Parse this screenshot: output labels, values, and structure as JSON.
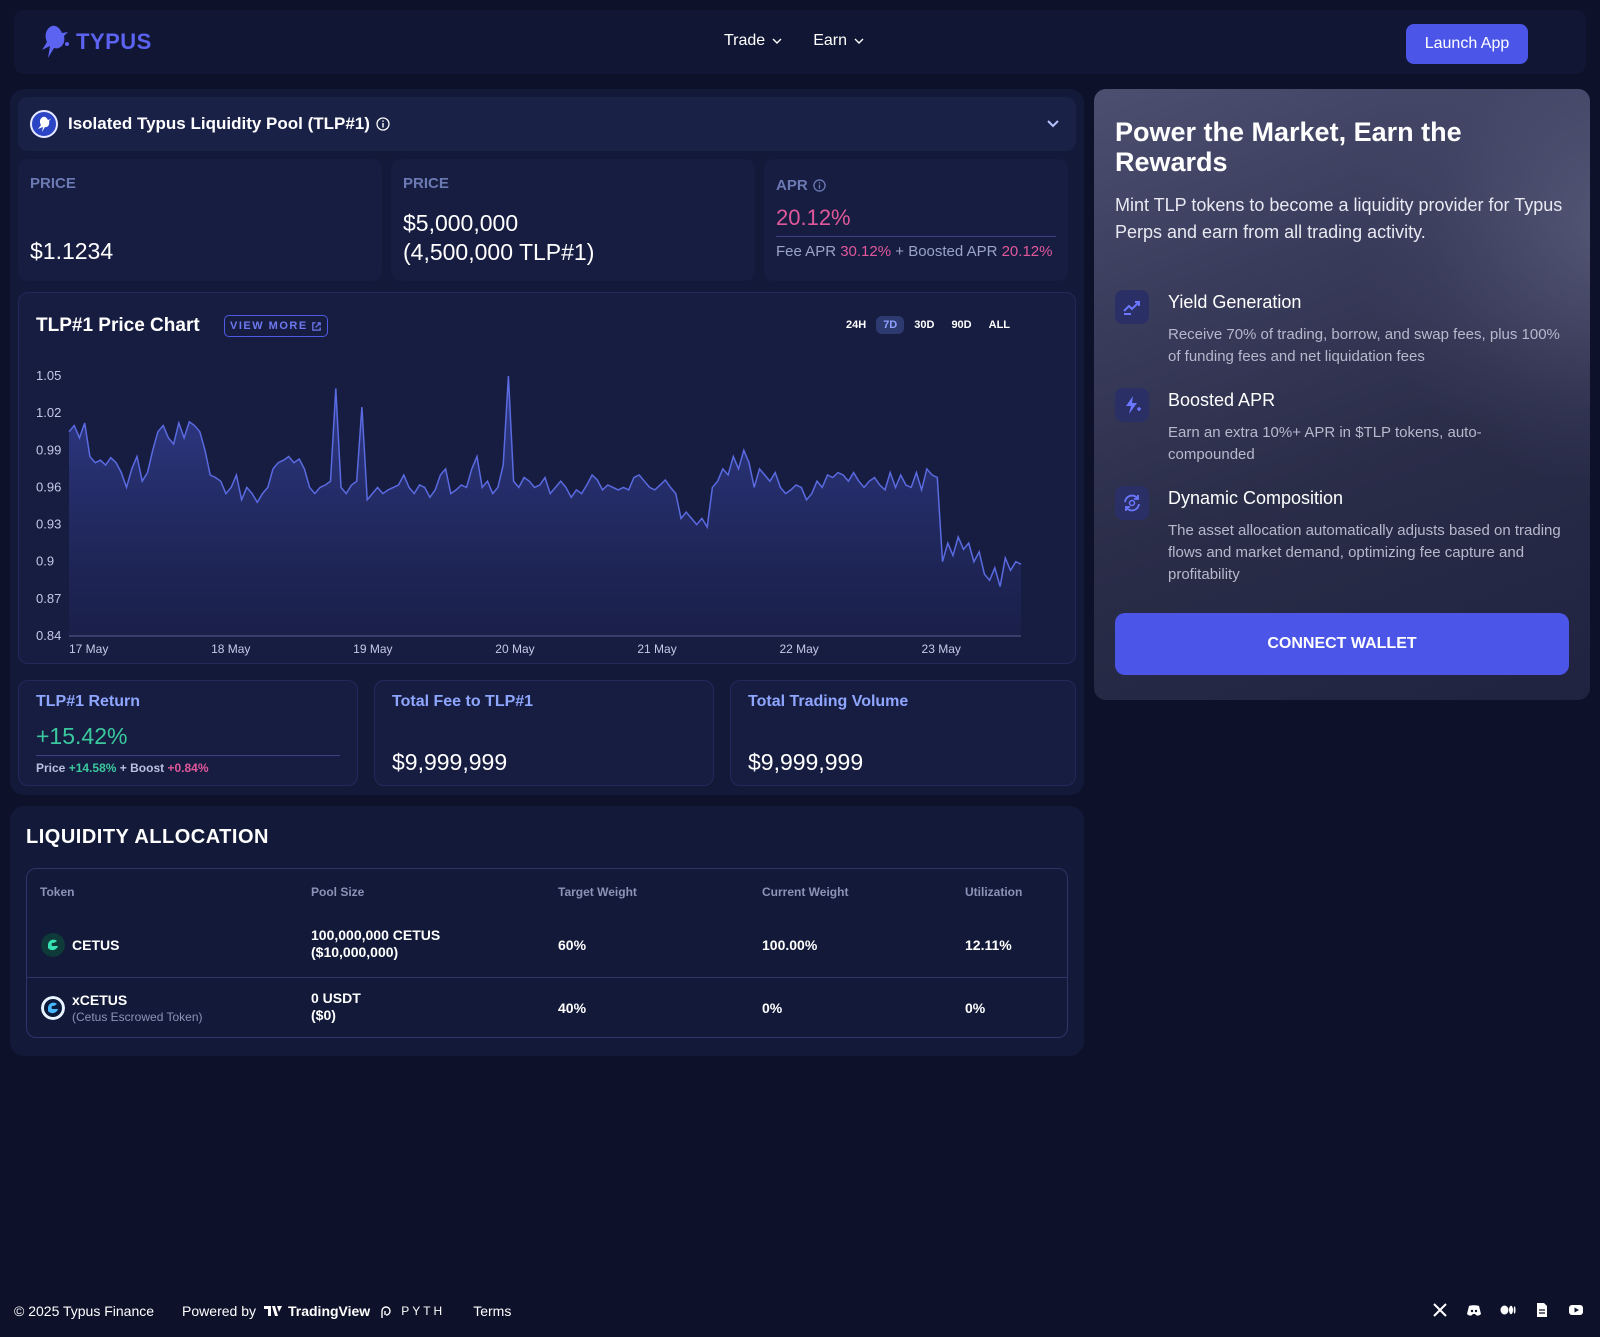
{
  "header": {
    "logo_text": "TYPUS",
    "nav": [
      {
        "label": "Trade"
      },
      {
        "label": "Earn"
      }
    ],
    "launch_label": "Launch App"
  },
  "pool": {
    "title": "Isolated Typus Liquidity Pool (TLP#1)",
    "icon_text": "TLP"
  },
  "stats": {
    "price": {
      "label": "PRICE",
      "value": "$1.1234"
    },
    "tvl": {
      "label": "PRICE",
      "value_line1": "$5,000,000",
      "value_line2": "(4,500,000 TLP#1)"
    },
    "apr": {
      "label": "APR",
      "value": "20.12%",
      "fee_label": "Fee APR",
      "fee_value": "30.12%",
      "plus": "+",
      "boost_label": "Boosted APR",
      "boost_value": "20.12%"
    }
  },
  "chart": {
    "title": "TLP#1 Price Chart",
    "view_more": "VIEW MORE",
    "ranges": [
      {
        "label": "24H",
        "active": false
      },
      {
        "label": "7D",
        "active": true
      },
      {
        "label": "30D",
        "active": false
      },
      {
        "label": "90D",
        "active": false
      },
      {
        "label": "ALL",
        "active": false
      }
    ]
  },
  "chart_data": {
    "type": "area",
    "title": "TLP#1 Price Chart",
    "xlabel": "",
    "ylabel": "",
    "ylim": [
      0.84,
      1.05
    ],
    "yticks": [
      "1.05",
      "1.02",
      "0.99",
      "0.96",
      "0.93",
      "0.9",
      "0.87",
      "0.84"
    ],
    "xticks": [
      "17 May",
      "18 May",
      "19 May",
      "20 May",
      "21 May",
      "22 May",
      "23 May"
    ],
    "x_start_day": 0,
    "x_end_day": 6.7,
    "values": [
      1.005,
      1.01,
      1.0,
      1.012,
      0.985,
      0.98,
      0.982,
      0.978,
      0.984,
      0.98,
      0.972,
      0.96,
      0.975,
      0.985,
      0.965,
      0.972,
      0.99,
      1.005,
      1.01,
      1.0,
      0.995,
      1.012,
      1.0,
      1.013,
      1.01,
      1.005,
      0.99,
      0.97,
      0.968,
      0.965,
      0.955,
      0.96,
      0.97,
      0.95,
      0.96,
      0.955,
      0.948,
      0.955,
      0.96,
      0.975,
      0.98,
      0.982,
      0.985,
      0.98,
      0.983,
      0.975,
      0.96,
      0.955,
      0.96,
      0.962,
      0.965,
      1.04,
      0.96,
      0.955,
      0.962,
      0.965,
      1.025,
      0.95,
      0.955,
      0.96,
      0.955,
      0.958,
      0.96,
      0.962,
      0.97,
      0.96,
      0.955,
      0.962,
      0.96,
      0.952,
      0.958,
      0.97,
      0.975,
      0.955,
      0.958,
      0.962,
      0.96,
      0.975,
      0.985,
      0.96,
      0.965,
      0.955,
      0.96,
      0.978,
      1.05,
      0.965,
      0.96,
      0.968,
      0.965,
      0.96,
      0.962,
      0.968,
      0.955,
      0.96,
      0.965,
      0.96,
      0.952,
      0.958,
      0.955,
      0.962,
      0.97,
      0.966,
      0.958,
      0.962,
      0.96,
      0.958,
      0.96,
      0.958,
      0.968,
      0.97,
      0.965,
      0.96,
      0.958,
      0.962,
      0.966,
      0.96,
      0.955,
      0.935,
      0.94,
      0.935,
      0.93,
      0.935,
      0.928,
      0.96,
      0.965,
      0.975,
      0.97,
      0.985,
      0.975,
      0.99,
      0.98,
      0.96,
      0.975,
      0.97,
      0.965,
      0.972,
      0.96,
      0.955,
      0.958,
      0.962,
      0.96,
      0.95,
      0.955,
      0.965,
      0.96,
      0.97,
      0.968,
      0.972,
      0.97,
      0.965,
      0.972,
      0.965,
      0.96,
      0.965,
      0.968,
      0.962,
      0.958,
      0.972,
      0.96,
      0.97,
      0.962,
      0.96,
      0.972,
      0.958,
      0.975,
      0.97,
      0.968,
      0.9,
      0.915,
      0.905,
      0.92,
      0.91,
      0.915,
      0.9,
      0.908,
      0.89,
      0.885,
      0.895,
      0.88,
      0.903,
      0.893,
      0.9,
      0.898
    ]
  },
  "metrics": {
    "return": {
      "label": "TLP#1 Return",
      "value": "+15.42%",
      "price_label": "Price",
      "price_value": "+14.58%",
      "plus": "+",
      "boost_label": "Boost",
      "boost_value": "+0.84%"
    },
    "fee": {
      "label": "Total Fee to TLP#1",
      "value": "$9,999,999"
    },
    "volume": {
      "label": "Total Trading Volume",
      "value": "$9,999,999"
    }
  },
  "liquidity": {
    "title": "LIQUIDITY ALLOCATION",
    "columns": [
      "Token",
      "Pool Size",
      "Target Weight",
      "Current Weight",
      "Utilization"
    ],
    "rows": [
      {
        "token": "CETUS",
        "token_sub": "",
        "pool_line1": "100,000,000 CETUS",
        "pool_line2": "($10,000,000)",
        "target": "60%",
        "current": "100.00%",
        "util": "12.11%"
      },
      {
        "token": "xCETUS",
        "token_sub": "(Cetus Escrowed Token)",
        "pool_line1": "0 USDT",
        "pool_line2": "($0)",
        "target": "40%",
        "current": "0%",
        "util": "0%"
      }
    ]
  },
  "promo": {
    "title": "Power the Market, Earn the Rewards",
    "description": "Mint TLP tokens to become a liquidity provider for Typus Perps and earn from all trading activity.",
    "features": [
      {
        "icon": "chart-up-icon",
        "title": "Yield Generation",
        "desc": "Receive 70% of trading, borrow, and swap fees, plus 100% of funding fees and net liquidation fees"
      },
      {
        "icon": "bolt-icon",
        "title": "Boosted APR",
        "desc": "Earn an extra 10%+ APR in $TLP tokens, auto-compounded"
      },
      {
        "icon": "refresh-icon",
        "title": "Dynamic Composition",
        "desc": "The asset allocation automatically adjusts based on trading flows and market demand, optimizing fee capture and profitability"
      }
    ],
    "connect_label": "CONNECT WALLET"
  },
  "footer": {
    "copyright": "© 2025 Typus Finance",
    "powered": "Powered by",
    "tradingview": "TradingView",
    "pyth": "PYTH",
    "terms": "Terms"
  },
  "colors": {
    "accent": "#4b55e8",
    "positive": "#3ac99d",
    "pink": "#e0589a",
    "chart_line": "#5a6ae0"
  }
}
